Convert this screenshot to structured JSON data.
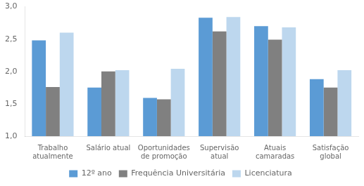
{
  "chart_data": {
    "type": "bar",
    "categories": [
      "Trabalho\natualmente",
      "Salário atual",
      "Oportunidades\nde promoção",
      "Supervisão\natual",
      "Atuais\ncamaradas",
      "Satisfação\nglobal"
    ],
    "series": [
      {
        "name": "12º ano",
        "color": "#5B9BD5",
        "values": [
          2.48,
          1.75,
          1.59,
          2.83,
          2.7,
          1.88
        ]
      },
      {
        "name": "Frequência Universitária",
        "color": "#808080",
        "values": [
          1.76,
          2.0,
          1.57,
          2.62,
          2.49,
          1.75
        ]
      },
      {
        "name": "Licenciatura",
        "color": "#BDD7EE",
        "values": [
          2.6,
          2.02,
          2.04,
          2.84,
          2.68,
          2.02
        ]
      }
    ],
    "ylim": [
      1.0,
      3.0
    ],
    "yticks": [
      {
        "value": 1.0,
        "label": "1,0"
      },
      {
        "value": 1.5,
        "label": "1,5"
      },
      {
        "value": 2.0,
        "label": "2,0"
      },
      {
        "value": 2.5,
        "label": "2,5"
      },
      {
        "value": 3.0,
        "label": "3,0"
      }
    ],
    "grid": false,
    "legend": "bottom"
  }
}
